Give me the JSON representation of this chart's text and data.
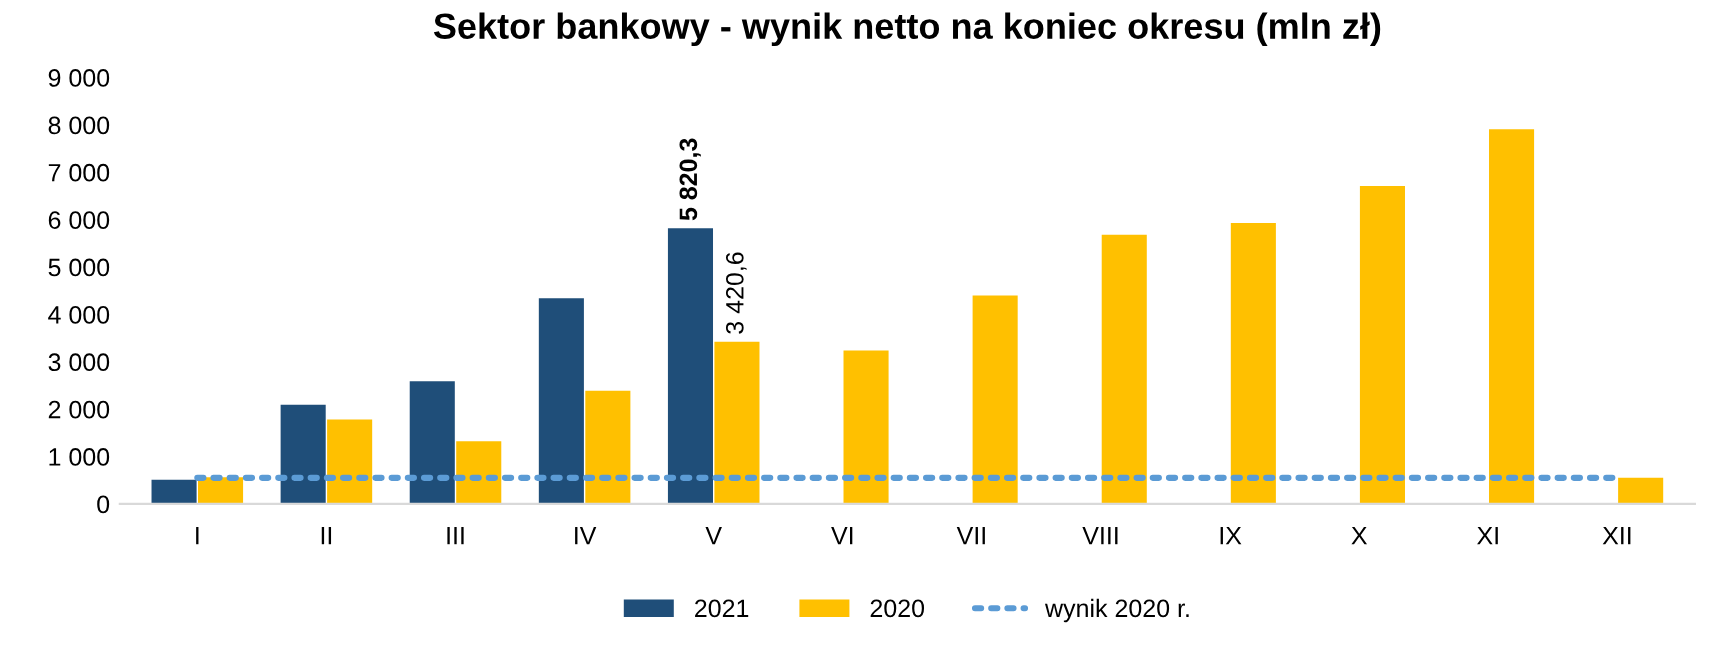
{
  "chart_data": {
    "type": "bar",
    "title": "Sektor bankowy - wynik netto na koniec okresu (mln zł)",
    "categories": [
      "I",
      "II",
      "III",
      "IV",
      "V",
      "VI",
      "VII",
      "VIII",
      "IX",
      "X",
      "XI",
      "XII"
    ],
    "series": [
      {
        "name": "2021",
        "color": "#1f4e79",
        "values": [
          510,
          2090,
          2590,
          4340,
          5820.3,
          null,
          null,
          null,
          null,
          null,
          null,
          null
        ],
        "value_labels": [
          null,
          null,
          null,
          null,
          "5 820,3",
          null,
          null,
          null,
          null,
          null,
          null,
          null
        ]
      },
      {
        "name": "2020",
        "color": "#ffc000",
        "values": [
          560,
          1780,
          1320,
          2390,
          3420.6,
          3240,
          4400,
          5680,
          5930,
          6710,
          7910,
          550
        ],
        "value_labels": [
          null,
          null,
          null,
          null,
          "3 420,6",
          null,
          null,
          null,
          null,
          null,
          null,
          null
        ]
      },
      {
        "name": "wynik 2020 r.",
        "type": "line",
        "color": "#5b9bd5",
        "line_style": "dotted",
        "values": [
          550,
          550,
          550,
          550,
          550,
          550,
          550,
          550,
          550,
          550,
          550,
          550
        ]
      }
    ],
    "ylim": [
      0,
      9000
    ],
    "yticks": [
      {
        "value": 0,
        "label": "0"
      },
      {
        "value": 1000,
        "label": "1 000"
      },
      {
        "value": 2000,
        "label": "2 000"
      },
      {
        "value": 3000,
        "label": "3 000"
      },
      {
        "value": 4000,
        "label": "4 000"
      },
      {
        "value": 5000,
        "label": "5 000"
      },
      {
        "value": 6000,
        "label": "6 000"
      },
      {
        "value": 7000,
        "label": "7 000"
      },
      {
        "value": 8000,
        "label": "8 000"
      },
      {
        "value": 9000,
        "label": "9 000"
      }
    ],
    "grid": false,
    "legend": "bottom"
  }
}
